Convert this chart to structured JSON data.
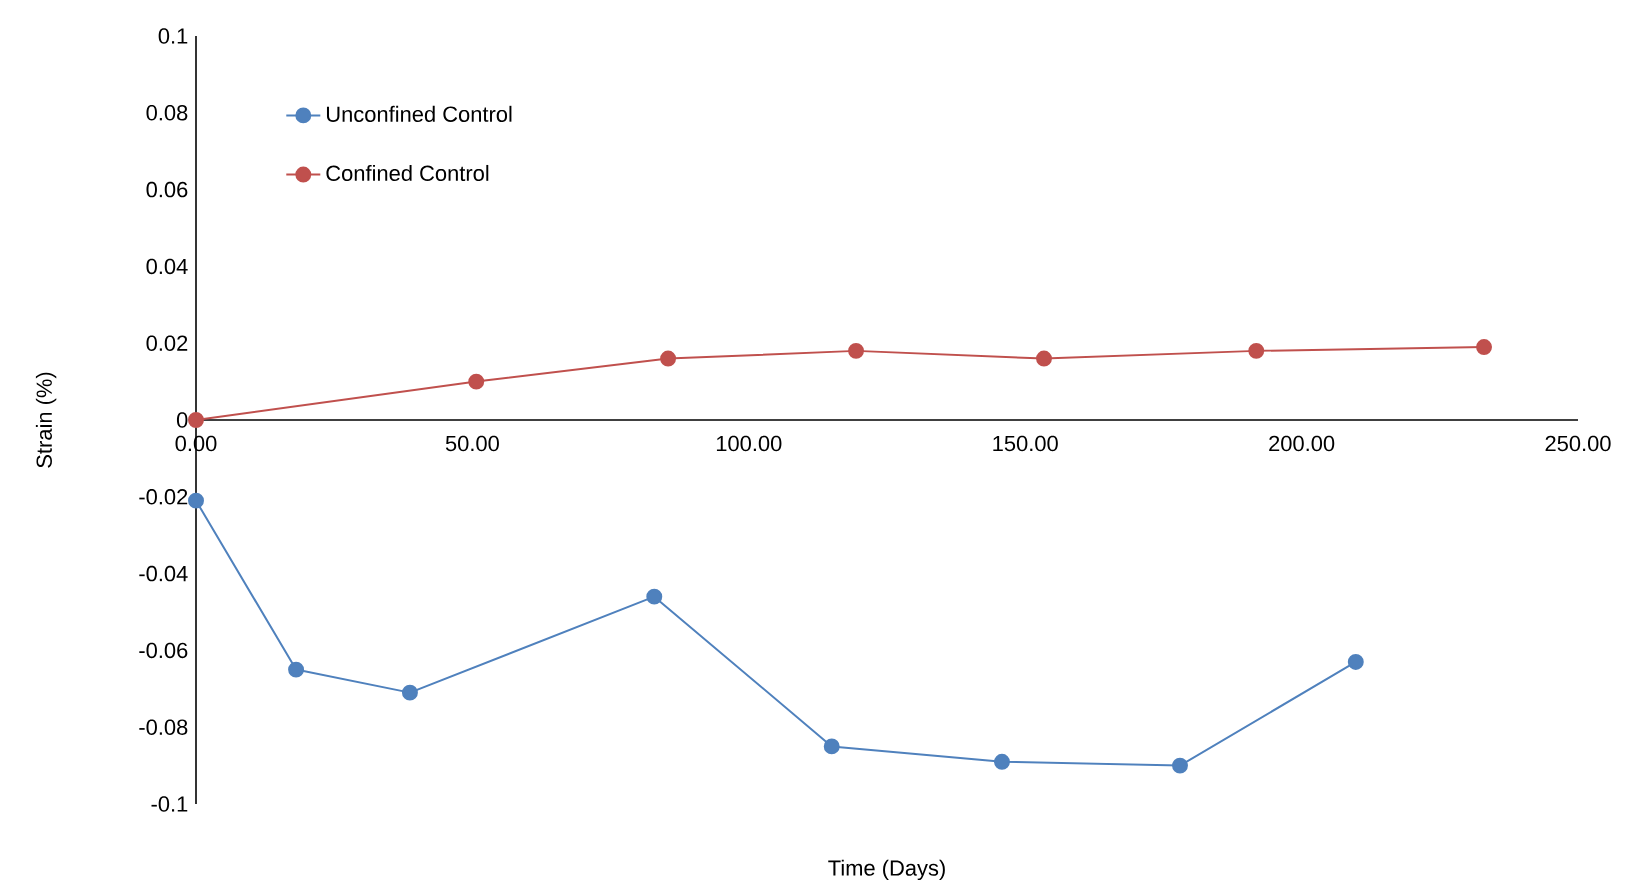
{
  "chart_data": {
    "type": "line",
    "xlabel": "Time (Days)",
    "ylabel": "Strain (%)",
    "series": [
      {
        "name": "Unconfined Control",
        "color": "#4f81bd",
        "x": [
          0,
          18.1,
          38.7,
          82.9,
          115,
          145.8,
          178,
          209.8
        ],
        "values": [
          -0.021,
          -0.065,
          -0.071,
          -0.046,
          -0.085,
          -0.089,
          -0.09,
          -0.063
        ]
      },
      {
        "name": "Confined Control",
        "color": "#c0504d",
        "x": [
          0,
          50.7,
          85.4,
          119.4,
          153.4,
          191.8,
          233
        ],
        "values": [
          0,
          0.01,
          0.016,
          0.018,
          0.016,
          0.018,
          0.019
        ]
      }
    ],
    "xlim": [
      0,
      250
    ],
    "xticks": [
      {
        "value": 0,
        "label": "0.00"
      },
      {
        "value": 50,
        "label": "50.00"
      },
      {
        "value": 100,
        "label": "100.00"
      },
      {
        "value": 150,
        "label": "150.00"
      },
      {
        "value": 200,
        "label": "200.00"
      },
      {
        "value": 250,
        "label": "250.00"
      }
    ],
    "ylim": [
      -0.1,
      0.1
    ],
    "yticks": [
      -0.1,
      -0.08,
      -0.06,
      -0.04,
      -0.02,
      0,
      0.02,
      0.04,
      0.06,
      0.08,
      0.1
    ],
    "grid": false,
    "legend": "top left",
    "marker": "circle",
    "line_style": "solid"
  }
}
